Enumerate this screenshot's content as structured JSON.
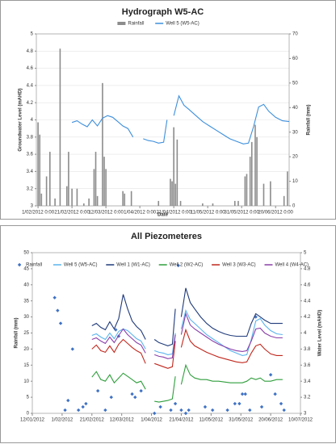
{
  "chart_data": [
    {
      "type": "combo",
      "title": "Hydrograph W5-AC",
      "xlabel": "Date",
      "ylabel": "Groundwater Level (mAHD)",
      "y2label": "Rainfall (mm)",
      "xlim": [
        "2012-01-31",
        "2012-06-28"
      ],
      "xticks": [
        {
          "value": "2012-02-01",
          "label": "1/02/2012 0:00"
        },
        {
          "value": "2012-02-21",
          "label": "21/02/2012 0:00"
        },
        {
          "value": "2012-03-12",
          "label": "12/03/2012 0:00"
        },
        {
          "value": "2012-04-01",
          "label": "1/04/2012 0:00"
        },
        {
          "value": "2012-04-21",
          "label": "21/04/2012 0:00"
        },
        {
          "value": "2012-05-11",
          "label": "11/05/2012 0:00"
        },
        {
          "value": "2012-05-31",
          "label": "31/05/2012 0:00"
        },
        {
          "value": "2012-06-20",
          "label": "20/06/2012 0:00"
        }
      ],
      "ylim": [
        3,
        5
      ],
      "yticks": [
        3,
        3.2,
        3.4,
        3.6,
        3.8,
        4,
        4.2,
        4.4,
        4.6,
        4.8,
        5
      ],
      "y2lim": [
        0,
        70
      ],
      "y2ticks": [
        0,
        10,
        20,
        30,
        40,
        50,
        60,
        70
      ],
      "grid": true,
      "series": [
        {
          "name": "Rainfall",
          "type": "bar",
          "axis": "y2",
          "color": "#8c8c8c",
          "x": [
            "2012-02-01",
            "2012-02-02",
            "2012-02-03",
            "2012-02-06",
            "2012-02-08",
            "2012-02-11",
            "2012-02-14",
            "2012-02-18",
            "2012-02-19",
            "2012-02-21",
            "2012-02-24",
            "2012-02-28",
            "2012-03-02",
            "2012-03-05",
            "2012-03-06",
            "2012-03-07",
            "2012-03-10",
            "2012-03-11",
            "2012-03-12",
            "2012-03-22",
            "2012-03-23",
            "2012-03-27",
            "2012-04-12",
            "2012-04-19",
            "2012-04-20",
            "2012-04-21",
            "2012-04-22",
            "2012-04-23",
            "2012-04-25",
            "2012-05-08",
            "2012-05-14",
            "2012-05-27",
            "2012-05-29",
            "2012-06-02",
            "2012-06-03",
            "2012-06-05",
            "2012-06-06",
            "2012-06-08",
            "2012-06-09",
            "2012-06-13",
            "2012-06-17",
            "2012-06-25",
            "2012-06-27"
          ],
          "values": [
            34,
            29,
            5,
            12,
            22,
            3,
            64,
            8,
            22,
            7,
            7,
            1,
            3,
            15,
            22,
            4,
            50,
            20,
            15,
            6,
            5,
            6,
            2,
            11,
            10,
            32,
            9,
            27,
            2,
            1,
            1,
            2,
            2,
            12,
            13,
            20,
            26,
            33,
            28,
            9,
            10,
            4,
            14
          ]
        },
        {
          "name": "Well 5 (W5-AC)",
          "type": "line",
          "axis": "y",
          "color": "#3d8fdc",
          "x": [
            "2012-02-21",
            "2012-02-24",
            "2012-02-27",
            "2012-03-01",
            "2012-03-04",
            "2012-03-07",
            "2012-03-10",
            "2012-03-13",
            "2012-03-16",
            "2012-03-19",
            "2012-03-22",
            "2012-03-25",
            "2012-03-28",
            "2012-03-31",
            "2012-04-03",
            "2012-04-06",
            "2012-04-09",
            "2012-04-12",
            "2012-04-15",
            "2012-04-17",
            "2012-04-19",
            "2012-04-21",
            "2012-04-24",
            "2012-04-27",
            "2012-04-30",
            "2012-05-04",
            "2012-05-08",
            "2012-05-12",
            "2012-05-16",
            "2012-05-20",
            "2012-05-24",
            "2012-05-28",
            "2012-06-01",
            "2012-06-04",
            "2012-06-07",
            "2012-06-10",
            "2012-06-13",
            "2012-06-16",
            "2012-06-20",
            "2012-06-24",
            "2012-06-28"
          ],
          "values": [
            3.97,
            3.99,
            3.95,
            3.92,
            4.0,
            3.93,
            4.02,
            4.05,
            4.03,
            3.98,
            3.93,
            3.9,
            3.8,
            null,
            3.78,
            3.76,
            3.75,
            3.73,
            3.74,
            4.0,
            null,
            4.05,
            4.28,
            4.17,
            4.12,
            4.05,
            3.98,
            3.93,
            3.88,
            3.83,
            3.78,
            3.75,
            3.72,
            3.73,
            3.92,
            4.15,
            4.18,
            4.1,
            4.03,
            3.99,
            3.98
          ]
        }
      ]
    },
    {
      "type": "combo",
      "title": "All Piezometeres",
      "ylabel": "Rainfall (mm)",
      "y2label": "Water Level (mAHD)",
      "xlim": [
        "2012-01-12",
        "2012-07-10"
      ],
      "xticks": [
        {
          "value": "2012-01-12",
          "label": "12/01/2012"
        },
        {
          "value": "2012-02-01",
          "label": "1/02/2012"
        },
        {
          "value": "2012-02-21",
          "label": "21/02/2012"
        },
        {
          "value": "2012-03-12",
          "label": "12/03/2012"
        },
        {
          "value": "2012-04-01",
          "label": "1/04/2012"
        },
        {
          "value": "2012-04-21",
          "label": "21/04/2012"
        },
        {
          "value": "2012-05-11",
          "label": "11/05/2012"
        },
        {
          "value": "2012-05-31",
          "label": "31/05/2012"
        },
        {
          "value": "2012-06-20",
          "label": "20/06/2012"
        },
        {
          "value": "2012-07-10",
          "label": "10/07/2012"
        }
      ],
      "ylim": [
        0,
        50
      ],
      "yticks": [
        0,
        5,
        10,
        15,
        20,
        25,
        30,
        35,
        40,
        45,
        50
      ],
      "y2lim": [
        3,
        5
      ],
      "y2ticks": [
        3,
        3.2,
        3.4,
        3.6,
        3.8,
        4,
        4.2,
        4.4,
        4.6,
        4.8,
        5
      ],
      "grid": false,
      "x": [
        "2012-02-21",
        "2012-02-24",
        "2012-02-27",
        "2012-03-01",
        "2012-03-04",
        "2012-03-07",
        "2012-03-10",
        "2012-03-13",
        "2012-03-16",
        "2012-03-19",
        "2012-03-22",
        "2012-03-25",
        "2012-03-28",
        "2012-03-31",
        "2012-04-03",
        "2012-04-06",
        "2012-04-09",
        "2012-04-12",
        "2012-04-15",
        "2012-04-17",
        "2012-04-19",
        "2012-04-21",
        "2012-04-24",
        "2012-04-27",
        "2012-04-30",
        "2012-05-04",
        "2012-05-08",
        "2012-05-12",
        "2012-05-16",
        "2012-05-20",
        "2012-05-24",
        "2012-05-28",
        "2012-06-01",
        "2012-06-04",
        "2012-06-07",
        "2012-06-10",
        "2012-06-13",
        "2012-06-16",
        "2012-06-20",
        "2012-06-24",
        "2012-06-28"
      ],
      "series": [
        {
          "name": "Rainfall",
          "type": "scatter",
          "axis": "y",
          "color": "#3f72c4",
          "x": [
            "2012-01-27",
            "2012-01-29",
            "2012-01-31",
            "2012-02-03",
            "2012-02-05",
            "2012-02-08",
            "2012-02-12",
            "2012-02-15",
            "2012-02-17",
            "2012-02-25",
            "2012-03-01",
            "2012-03-05",
            "2012-03-08",
            "2012-03-10",
            "2012-03-19",
            "2012-03-21",
            "2012-03-25",
            "2012-04-03",
            "2012-04-07",
            "2012-04-14",
            "2012-04-17",
            "2012-04-19",
            "2012-04-21",
            "2012-04-24",
            "2012-04-26",
            "2012-05-07",
            "2012-05-12",
            "2012-05-22",
            "2012-05-27",
            "2012-05-30",
            "2012-06-01",
            "2012-06-03",
            "2012-06-06",
            "2012-06-10",
            "2012-06-14",
            "2012-06-20",
            "2012-06-23",
            "2012-06-27",
            "2012-06-29"
          ],
          "values": [
            36,
            32,
            28,
            1,
            4,
            20,
            1,
            2,
            3,
            7,
            1,
            5,
            26,
            24,
            6,
            5,
            7,
            0,
            2,
            1,
            3,
            46,
            1,
            0,
            1,
            2,
            1,
            1,
            3,
            3,
            6,
            6,
            1,
            30,
            2,
            12,
            6,
            3,
            1
          ]
        },
        {
          "name": "Well 5 (W5-AC)",
          "type": "line",
          "axis": "y2",
          "color": "#5ab4ee",
          "values": [
            3.97,
            3.99,
            3.95,
            3.92,
            4.0,
            3.93,
            4.02,
            4.05,
            4.03,
            3.98,
            3.93,
            3.9,
            3.8,
            null,
            3.78,
            3.76,
            3.75,
            3.73,
            3.74,
            4.0,
            null,
            4.05,
            4.28,
            4.17,
            4.12,
            4.05,
            3.98,
            3.93,
            3.88,
            3.83,
            3.78,
            3.75,
            3.72,
            3.73,
            3.92,
            4.15,
            4.18,
            4.1,
            4.03,
            3.99,
            3.98
          ]
        },
        {
          "name": "Well 1 (W1-AC)",
          "type": "line",
          "axis": "y2",
          "color": "#1f3a7a",
          "values": [
            4.09,
            4.12,
            4.07,
            4.04,
            4.14,
            4.05,
            4.18,
            4.48,
            4.3,
            4.15,
            4.08,
            4.03,
            3.92,
            null,
            3.92,
            3.88,
            3.86,
            3.84,
            3.86,
            4.3,
            null,
            4.2,
            4.56,
            4.38,
            4.3,
            4.2,
            4.12,
            4.06,
            4.02,
            3.99,
            3.97,
            3.96,
            3.96,
            3.96,
            4.12,
            4.24,
            4.2,
            4.16,
            4.12,
            4.12,
            4.12
          ]
        },
        {
          "name": "Well 2 (W2-AC)",
          "type": "line",
          "axis": "y2",
          "color": "#2f9e3c",
          "values": [
            3.45,
            3.52,
            3.42,
            3.4,
            3.48,
            3.38,
            3.44,
            3.5,
            3.46,
            3.42,
            3.38,
            3.4,
            3.3,
            null,
            3.15,
            3.14,
            3.15,
            3.16,
            3.18,
            3.46,
            null,
            3.36,
            3.6,
            3.48,
            3.44,
            3.42,
            3.42,
            3.4,
            3.4,
            3.39,
            3.38,
            3.38,
            3.38,
            3.4,
            3.44,
            3.42,
            3.44,
            3.4,
            3.4,
            3.42,
            3.42
          ]
        },
        {
          "name": "Well 3 (W3-AC)",
          "type": "line",
          "axis": "y2",
          "color": "#c0281e",
          "values": [
            3.8,
            3.85,
            3.78,
            3.76,
            3.84,
            3.76,
            3.86,
            3.92,
            3.87,
            3.82,
            3.78,
            3.75,
            3.62,
            null,
            3.62,
            3.6,
            3.58,
            3.56,
            3.58,
            3.9,
            null,
            3.82,
            4.04,
            3.9,
            3.84,
            3.8,
            3.76,
            3.73,
            3.7,
            3.68,
            3.66,
            3.64,
            3.63,
            3.64,
            3.75,
            3.84,
            3.86,
            3.8,
            3.74,
            3.72,
            3.72
          ]
        },
        {
          "name": "Well 4 (W4-AC)",
          "type": "line",
          "axis": "y2",
          "color": "#8a3fa8",
          "values": [
            3.92,
            3.94,
            3.9,
            3.87,
            3.95,
            3.88,
            3.97,
            4.05,
            3.98,
            3.93,
            3.88,
            3.85,
            3.75,
            null,
            3.73,
            3.71,
            3.7,
            3.68,
            3.69,
            3.98,
            null,
            3.98,
            4.24,
            4.1,
            4.05,
            4.0,
            3.95,
            3.9,
            3.86,
            3.83,
            3.8,
            3.78,
            3.77,
            3.78,
            3.9,
            4.05,
            4.06,
            4.0,
            3.96,
            3.94,
            3.94
          ]
        }
      ]
    }
  ]
}
